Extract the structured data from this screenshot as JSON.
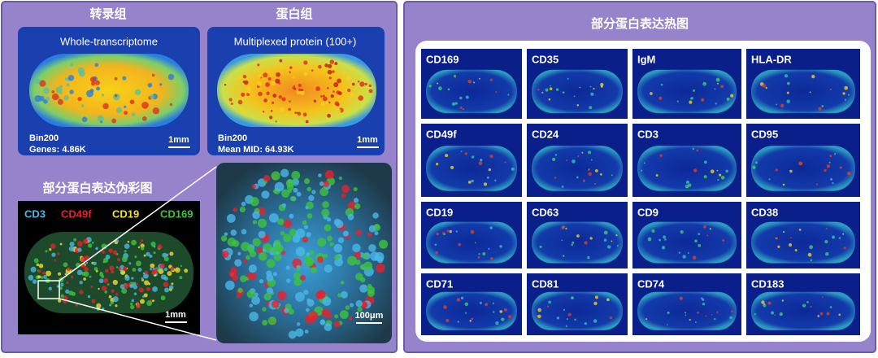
{
  "left_panel": {
    "transcriptome": {
      "title": "转录组",
      "caption": "Whole-transcriptome",
      "bin": "Bin200",
      "stat": "Genes: 4.86K",
      "scale": "1mm"
    },
    "proteome": {
      "title": "蛋白组",
      "caption": "Multiplexed protein (100+)",
      "bin": "Bin200",
      "stat": "Mean MID: 64.93K",
      "scale": "1mm"
    },
    "pseudocolor": {
      "title": "部分蛋白表达伪彩图",
      "channels": [
        {
          "label": "CD3",
          "color": "#4ab8e8"
        },
        {
          "label": "CD49f",
          "color": "#e8202a"
        },
        {
          "label": "CD19",
          "color": "#f0e030"
        },
        {
          "label": "CD169",
          "color": "#3cc43c"
        }
      ],
      "scale": "1mm"
    },
    "zoom": {
      "scale": "100μm"
    }
  },
  "right_panel": {
    "title": "部分蛋白表达热图",
    "markers": [
      "CD169",
      "CD35",
      "IgM",
      "HLA-DR",
      "CD49f",
      "CD24",
      "CD3",
      "CD95",
      "CD19",
      "CD63",
      "CD9",
      "CD38",
      "CD71",
      "CD81",
      "CD74",
      "CD183"
    ]
  }
}
